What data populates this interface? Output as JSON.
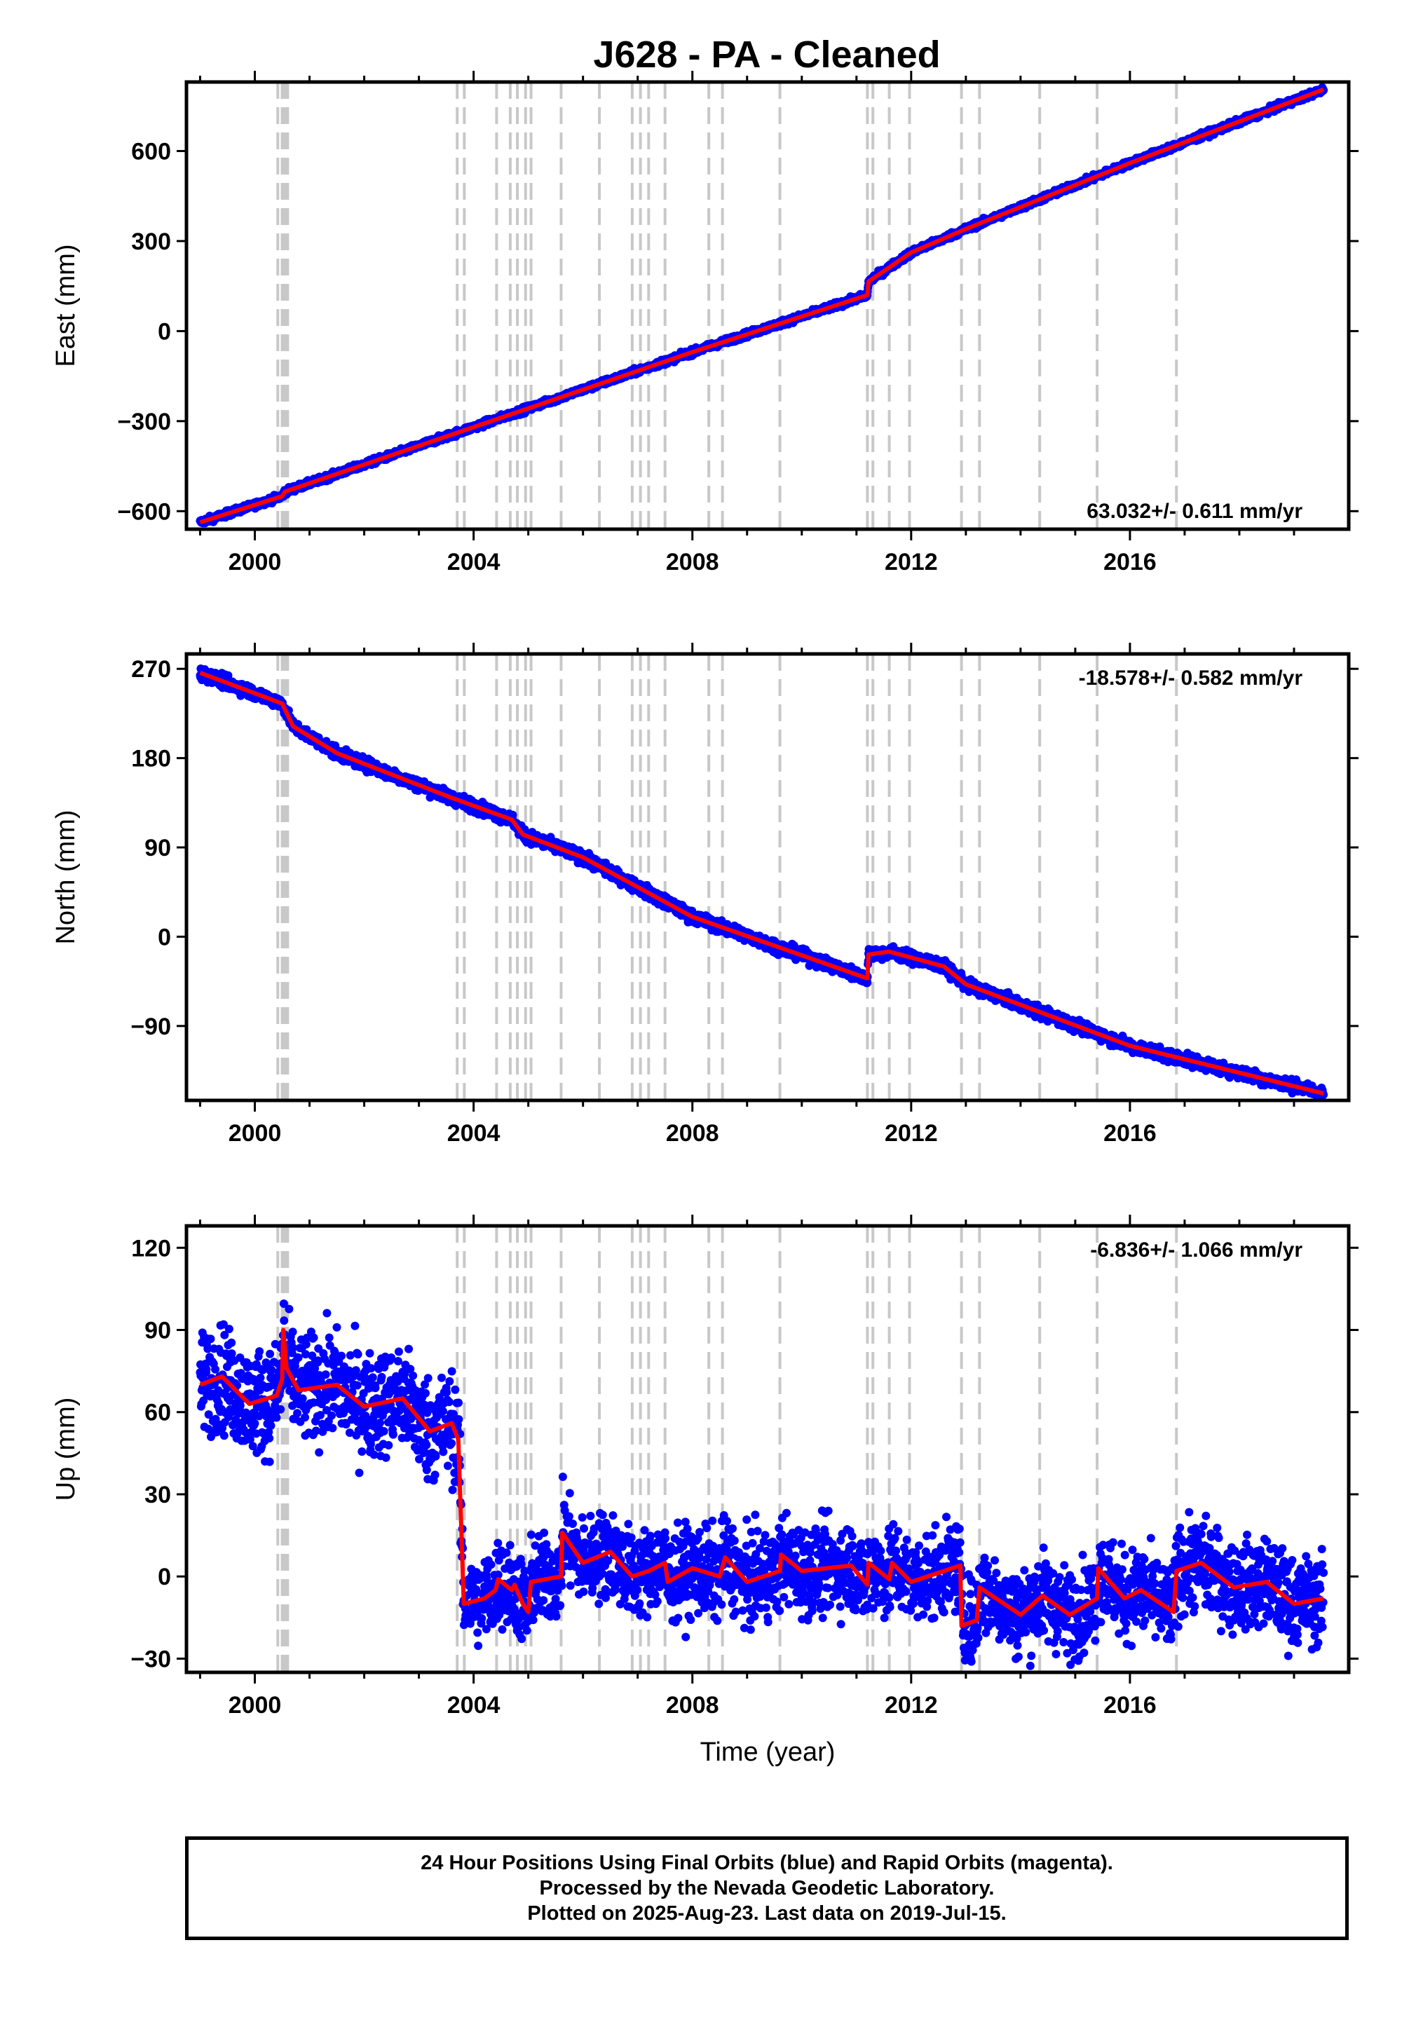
{
  "title": "J628  - PA - Cleaned",
  "colors": {
    "data": "#0000ff",
    "model": "#ff0000",
    "offset_line": "#c8c8c8",
    "frame": "#000000"
  },
  "chart_data": [
    {
      "type": "scatter",
      "component": "east",
      "ylabel": "East (mm)",
      "xlabel": "",
      "xlim": [
        1998.75,
        2020.0
      ],
      "ylim": [
        -660,
        830
      ],
      "yticks": [
        -600,
        -300,
        0,
        300,
        600
      ],
      "xticks": [
        2000,
        2004,
        2008,
        2012,
        2016
      ],
      "rate_label": "63.032+/- 0.611 mm/yr",
      "model": [
        [
          1999.0,
          -637
        ],
        [
          2000.5,
          -550
        ],
        [
          2000.55,
          -535
        ],
        [
          2004,
          -320
        ],
        [
          2008,
          -70
        ],
        [
          2011.2,
          120
        ],
        [
          2011.22,
          165
        ],
        [
          2011.5,
          200
        ],
        [
          2012,
          262
        ],
        [
          2013,
          340
        ],
        [
          2016,
          560
        ],
        [
          2019.54,
          805
        ]
      ],
      "noise": 5
    },
    {
      "type": "scatter",
      "component": "north",
      "ylabel": "North (mm)",
      "xlabel": "",
      "xlim": [
        1998.75,
        2020.0
      ],
      "ylim": [
        -165,
        285
      ],
      "yticks": [
        -90,
        0,
        90,
        180,
        270
      ],
      "xticks": [
        2000,
        2004,
        2008,
        2012,
        2016
      ],
      "rate_label": "-18.578+/- 0.582 mm/yr",
      "model": [
        [
          1999.0,
          266
        ],
        [
          2000.5,
          235
        ],
        [
          2000.7,
          212
        ],
        [
          2001.5,
          185
        ],
        [
          2003.6,
          140
        ],
        [
          2004.7,
          118
        ],
        [
          2004.9,
          103
        ],
        [
          2006,
          80
        ],
        [
          2008,
          20
        ],
        [
          2011.2,
          -42
        ],
        [
          2011.22,
          -18
        ],
        [
          2011.6,
          -15
        ],
        [
          2012.6,
          -30
        ],
        [
          2013,
          -48
        ],
        [
          2016,
          -110
        ],
        [
          2019.54,
          -158
        ]
      ],
      "noise": 3
    },
    {
      "type": "scatter",
      "component": "up",
      "ylabel": "Up (mm)",
      "xlabel": "Time (year)",
      "xlim": [
        1998.75,
        2020.0
      ],
      "ylim": [
        -35,
        128
      ],
      "yticks": [
        -30,
        0,
        30,
        60,
        90,
        120
      ],
      "xticks": [
        2000,
        2004,
        2008,
        2012,
        2016
      ],
      "rate_label": "-6.836+/- 1.066 mm/yr",
      "model": [
        [
          1999.0,
          70
        ],
        [
          1999.4,
          73
        ],
        [
          1999.9,
          63
        ],
        [
          2000.4,
          66
        ],
        [
          2000.5,
          72
        ],
        [
          2000.52,
          90
        ],
        [
          2000.58,
          76
        ],
        [
          2000.8,
          68
        ],
        [
          2001.5,
          70
        ],
        [
          2002.0,
          62
        ],
        [
          2002.7,
          65
        ],
        [
          2003.2,
          53
        ],
        [
          2003.6,
          56
        ],
        [
          2003.72,
          50
        ],
        [
          2003.82,
          -10
        ],
        [
          2004.2,
          -8
        ],
        [
          2004.4,
          -5
        ],
        [
          2004.45,
          -1
        ],
        [
          2004.7,
          -5
        ],
        [
          2004.75,
          -3
        ],
        [
          2004.9,
          -10
        ],
        [
          2005.0,
          -13
        ],
        [
          2005.05,
          -2
        ],
        [
          2005.6,
          0
        ],
        [
          2005.62,
          16
        ],
        [
          2006.0,
          5
        ],
        [
          2006.5,
          9
        ],
        [
          2006.9,
          0
        ],
        [
          2007.2,
          2
        ],
        [
          2007.5,
          5
        ],
        [
          2007.55,
          -2
        ],
        [
          2008.0,
          3
        ],
        [
          2008.5,
          0
        ],
        [
          2008.6,
          7
        ],
        [
          2009.0,
          -2
        ],
        [
          2009.6,
          2
        ],
        [
          2009.62,
          8
        ],
        [
          2010.0,
          2
        ],
        [
          2010.9,
          4
        ],
        [
          2011.2,
          -3
        ],
        [
          2011.22,
          5
        ],
        [
          2011.6,
          -1
        ],
        [
          2011.65,
          5
        ],
        [
          2012.0,
          -2
        ],
        [
          2012.9,
          4
        ],
        [
          2012.92,
          -18
        ],
        [
          2013.2,
          -16
        ],
        [
          2013.25,
          -4
        ],
        [
          2013.7,
          -10
        ],
        [
          2014.0,
          -14
        ],
        [
          2014.4,
          -7
        ],
        [
          2014.9,
          -14
        ],
        [
          2015.4,
          -8
        ],
        [
          2015.42,
          3
        ],
        [
          2015.9,
          -8
        ],
        [
          2016.2,
          -5
        ],
        [
          2016.8,
          -13
        ],
        [
          2016.85,
          2
        ],
        [
          2017.3,
          5
        ],
        [
          2017.9,
          -4
        ],
        [
          2018.5,
          -2
        ],
        [
          2019.0,
          -10
        ],
        [
          2019.54,
          -8
        ]
      ],
      "noise": 8
    }
  ],
  "offset_lines": [
    2000.42,
    2000.5,
    2000.55,
    2000.6,
    2003.7,
    2003.83,
    2004.42,
    2004.67,
    2004.8,
    2004.95,
    2005.05,
    2005.6,
    2006.3,
    2006.9,
    2007.05,
    2007.2,
    2007.5,
    2008.3,
    2008.55,
    2009.6,
    2011.2,
    2011.3,
    2011.6,
    2011.97,
    2012.92,
    2013.25,
    2014.35,
    2015.4,
    2016.85
  ],
  "footer": {
    "line1": "24 Hour Positions Using Final Orbits (blue) and Rapid Orbits (magenta).",
    "line2": "Processed by the Nevada Geodetic Laboratory.",
    "line3": "Plotted on 2025-Aug-23. Last data on 2019-Jul-15."
  }
}
